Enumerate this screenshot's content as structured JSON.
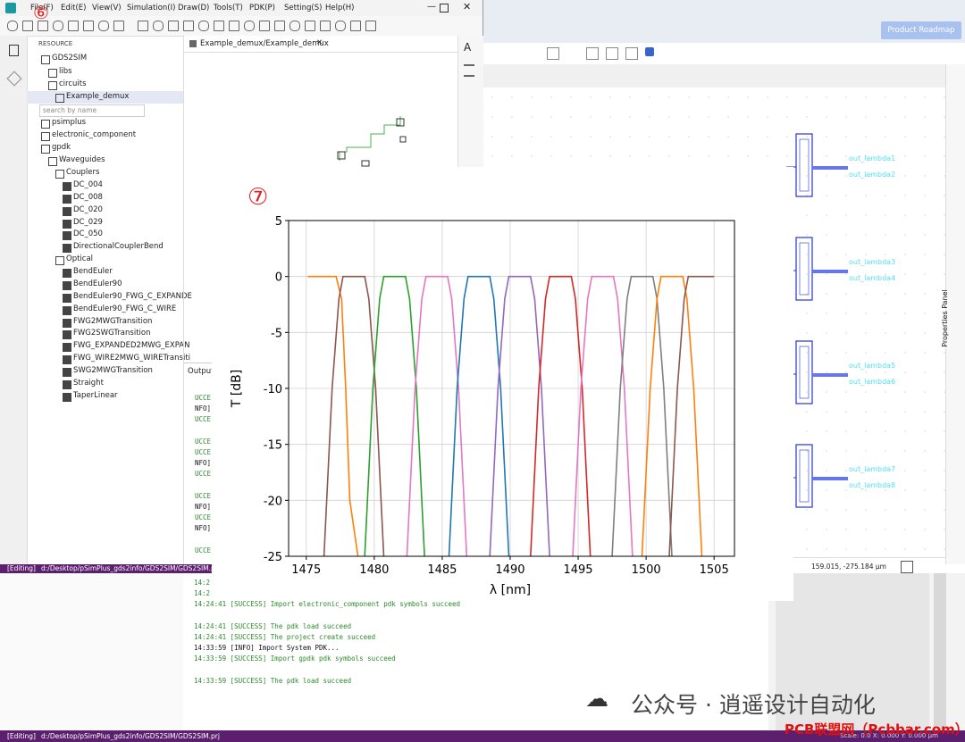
{
  "menu": [
    "File(F)",
    "Edit(E)",
    "View(V)",
    "Simulation(I)",
    "Draw(D)",
    "Tools(T)",
    "PDK(P)",
    "Setting(S)",
    "Help(H)"
  ],
  "resource_label": "RESOURCE",
  "tree": [
    "GDS2SIM",
    "libs",
    "circuits",
    "Example_demux",
    "psimplus",
    "electronic_component",
    "gpdk",
    "Waveguides",
    "Couplers",
    "DC_004",
    "DC_008",
    "DC_020",
    "DC_029",
    "DC_050",
    "DirectionalCouplerBend",
    "Optical",
    "BendEuler",
    "BendEuler90",
    "BendEuler90_FWG_C_EXPANDE",
    "BendEuler90_FWG_C_WIRE",
    "FWG2MWGTransition",
    "FWG2SWGTransition",
    "FWG_EXPANDED2MWG_EXPAN",
    "FWG_WIRE2MWG_WIRETransiti",
    "SWG2MWGTransition",
    "Straight",
    "TaperLinear"
  ],
  "search_placeholder": "search by name",
  "tab": "Example_demux/Example_demux",
  "output_tab": "Output",
  "log_fragments": [
    [
      "UCCE",
      "NFO]",
      "UCCE"
    ],
    [
      "UCCE",
      "UCCE",
      "NFO]",
      "UCCE"
    ],
    [
      "UCCE",
      "NFO]",
      "UCCE",
      "NFO]"
    ],
    [
      "UCCE"
    ]
  ],
  "log_lines": [
    [
      "14:2",
      "14:2",
      "14:24:41 [SUCCESS] Import electronic_component pdk symbols succeed"
    ],
    [
      "14:24:41 [SUCCESS] The pdk load succeed",
      "14:24:41 [SUCCESS] The project create succeed",
      "14:33:59 [INFO] Import System PDK...",
      "14:33:59 [SUCCESS] Import gpdk pdk symbols succeed"
    ],
    [
      "14:33:59 [SUCCESS] The pdk load succeed"
    ]
  ],
  "status_editing": "[Editing]",
  "status_path": "d:/Desktop/pSimPlus_gds2info/GDS2SIM/GDS2SIM.prj",
  "product_roadmap": "Product Roadmap",
  "properties_panel": "Properties Panel",
  "coords": "159.015, -275.184 µm",
  "bottom_status": "Scale: 0.0   X: 0.000  Y: 0.000  µm",
  "port_labels": [
    "out_lambda1",
    "out_lambda2",
    "out_lambda3",
    "out_lambda4",
    "out_lambda5",
    "out_lambda6",
    "out_lambda7",
    "out_lambda8"
  ],
  "markers": [
    "⑥",
    "⑦"
  ],
  "watermark": "公众号 · 逍遥设计自动化",
  "watermark_site": "PCB联盟网（Pcbbar.com）",
  "chart_data": {
    "type": "line",
    "xlabel": "λ [nm]",
    "ylabel": "T [dB]",
    "xlim": [
      1473.7,
      1506.5
    ],
    "ylim": [
      -25,
      5
    ],
    "xticks": [
      1475,
      1480,
      1485,
      1490,
      1495,
      1500,
      1505
    ],
    "yticks": [
      5,
      0,
      -5,
      -10,
      -15,
      -20,
      -25
    ],
    "grid": true,
    "series": [
      {
        "color": "#ff7f0e",
        "x": [
          1475.1,
          1477.2,
          1477.6,
          1477.9,
          1478.2,
          1478.8
        ],
        "values": [
          0,
          0,
          -2,
          -10,
          -20,
          -25
        ]
      },
      {
        "color": "#8c564b",
        "x": [
          1476.3,
          1476.9,
          1477.4,
          1477.7,
          1479.3,
          1479.6,
          1480.1,
          1480.7
        ],
        "values": [
          -25,
          -10,
          -2,
          0,
          0,
          -2,
          -10,
          -25
        ]
      },
      {
        "color": "#2ca02c",
        "x": [
          1479.3,
          1479.9,
          1480.4,
          1480.7,
          1482.3,
          1482.6,
          1483.1,
          1483.7
        ],
        "values": [
          -25,
          -10,
          -2,
          0,
          0,
          -2,
          -10,
          -25
        ]
      },
      {
        "color": "#e377c2",
        "x": [
          1482.4,
          1483.0,
          1483.5,
          1483.8,
          1485.4,
          1485.7,
          1486.2,
          1486.8
        ],
        "values": [
          -25,
          -10,
          -2,
          0,
          0,
          -2,
          -10,
          -25
        ]
      },
      {
        "color": "#1f77b4",
        "x": [
          1485.5,
          1486.1,
          1486.6,
          1486.9,
          1488.5,
          1488.8,
          1489.3,
          1489.9
        ],
        "values": [
          -25,
          -10,
          -2,
          0,
          0,
          -2,
          -10,
          -25
        ]
      },
      {
        "color": "#9467bd",
        "x": [
          1488.5,
          1489.1,
          1489.6,
          1489.9,
          1491.5,
          1491.8,
          1492.3,
          1492.9
        ],
        "values": [
          -25,
          -10,
          -2,
          0,
          0,
          -2,
          -10,
          -25
        ]
      },
      {
        "color": "#d62728",
        "x": [
          1491.5,
          1492.1,
          1492.6,
          1492.9,
          1494.5,
          1494.8,
          1495.3,
          1495.9
        ],
        "values": [
          -25,
          -10,
          -2,
          0,
          0,
          -2,
          -10,
          -25
        ]
      },
      {
        "color": "#e377c2",
        "x": [
          1494.6,
          1495.2,
          1495.7,
          1496.0,
          1497.6,
          1497.9,
          1498.4,
          1499.0
        ],
        "values": [
          -25,
          -10,
          -2,
          0,
          0,
          -2,
          -10,
          -25
        ]
      },
      {
        "color": "#7f7f7f",
        "x": [
          1497.5,
          1498.1,
          1498.6,
          1498.9,
          1500.5,
          1500.8,
          1501.3,
          1501.9
        ],
        "values": [
          -25,
          -10,
          -2,
          0,
          0,
          -2,
          -10,
          -25
        ]
      },
      {
        "color": "#ff7f0e",
        "x": [
          1499.7,
          1500.3,
          1500.8,
          1501.1,
          1502.7,
          1503.0,
          1503.5,
          1504.1
        ],
        "values": [
          -25,
          -10,
          -2,
          0,
          0,
          -2,
          -10,
          -25
        ]
      },
      {
        "color": "#8c564b",
        "x": [
          1501.7,
          1502.3,
          1502.8,
          1503.1,
          1505.0
        ],
        "values": [
          -25,
          -10,
          -2,
          0,
          0
        ]
      }
    ]
  }
}
